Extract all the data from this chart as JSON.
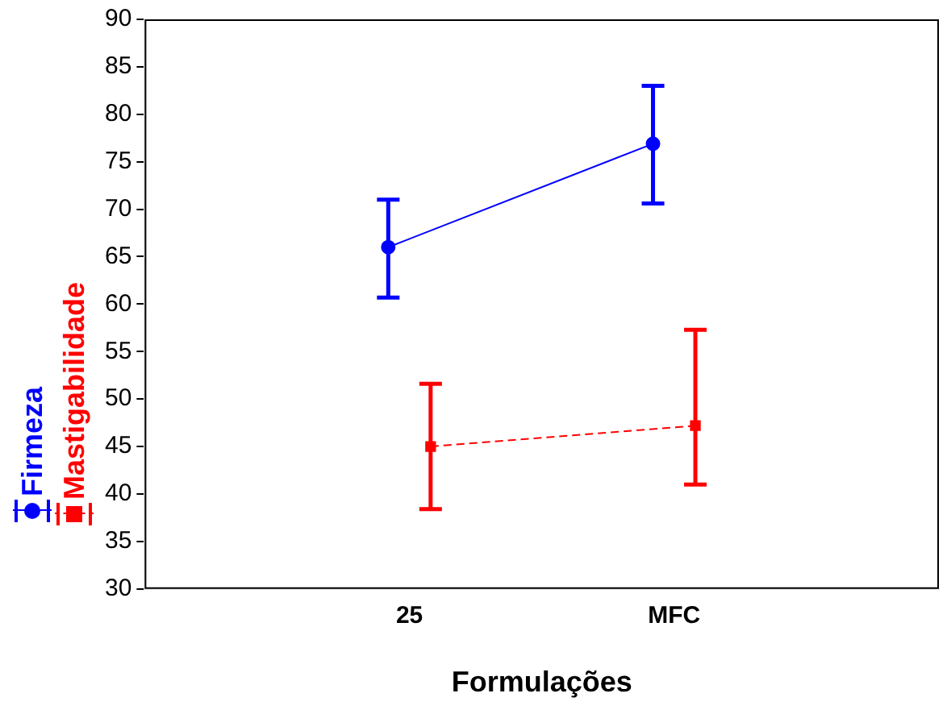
{
  "chart_data": {
    "type": "line",
    "xlabel": "Formulações",
    "categories": [
      "25",
      "MFC"
    ],
    "series": [
      {
        "name": "Firmeza",
        "color": "#0000ff",
        "values": [
          66,
          76.9
        ],
        "errors": [
          [
            60.7,
            71
          ],
          [
            70.6,
            83
          ]
        ],
        "marker": "circle",
        "line_style": "solid"
      },
      {
        "name": "Mastigabilidade",
        "color": "#ff0000",
        "values": [
          45,
          47.2
        ],
        "errors": [
          [
            38.4,
            51.6
          ],
          [
            41,
            57.3
          ]
        ],
        "marker": "square",
        "line_style": "dashed"
      }
    ],
    "ylim": [
      30,
      90
    ],
    "yticks": [
      30,
      35,
      40,
      45,
      50,
      55,
      60,
      65,
      70,
      75,
      80,
      85,
      90
    ],
    "grid": false,
    "legend": "left"
  }
}
